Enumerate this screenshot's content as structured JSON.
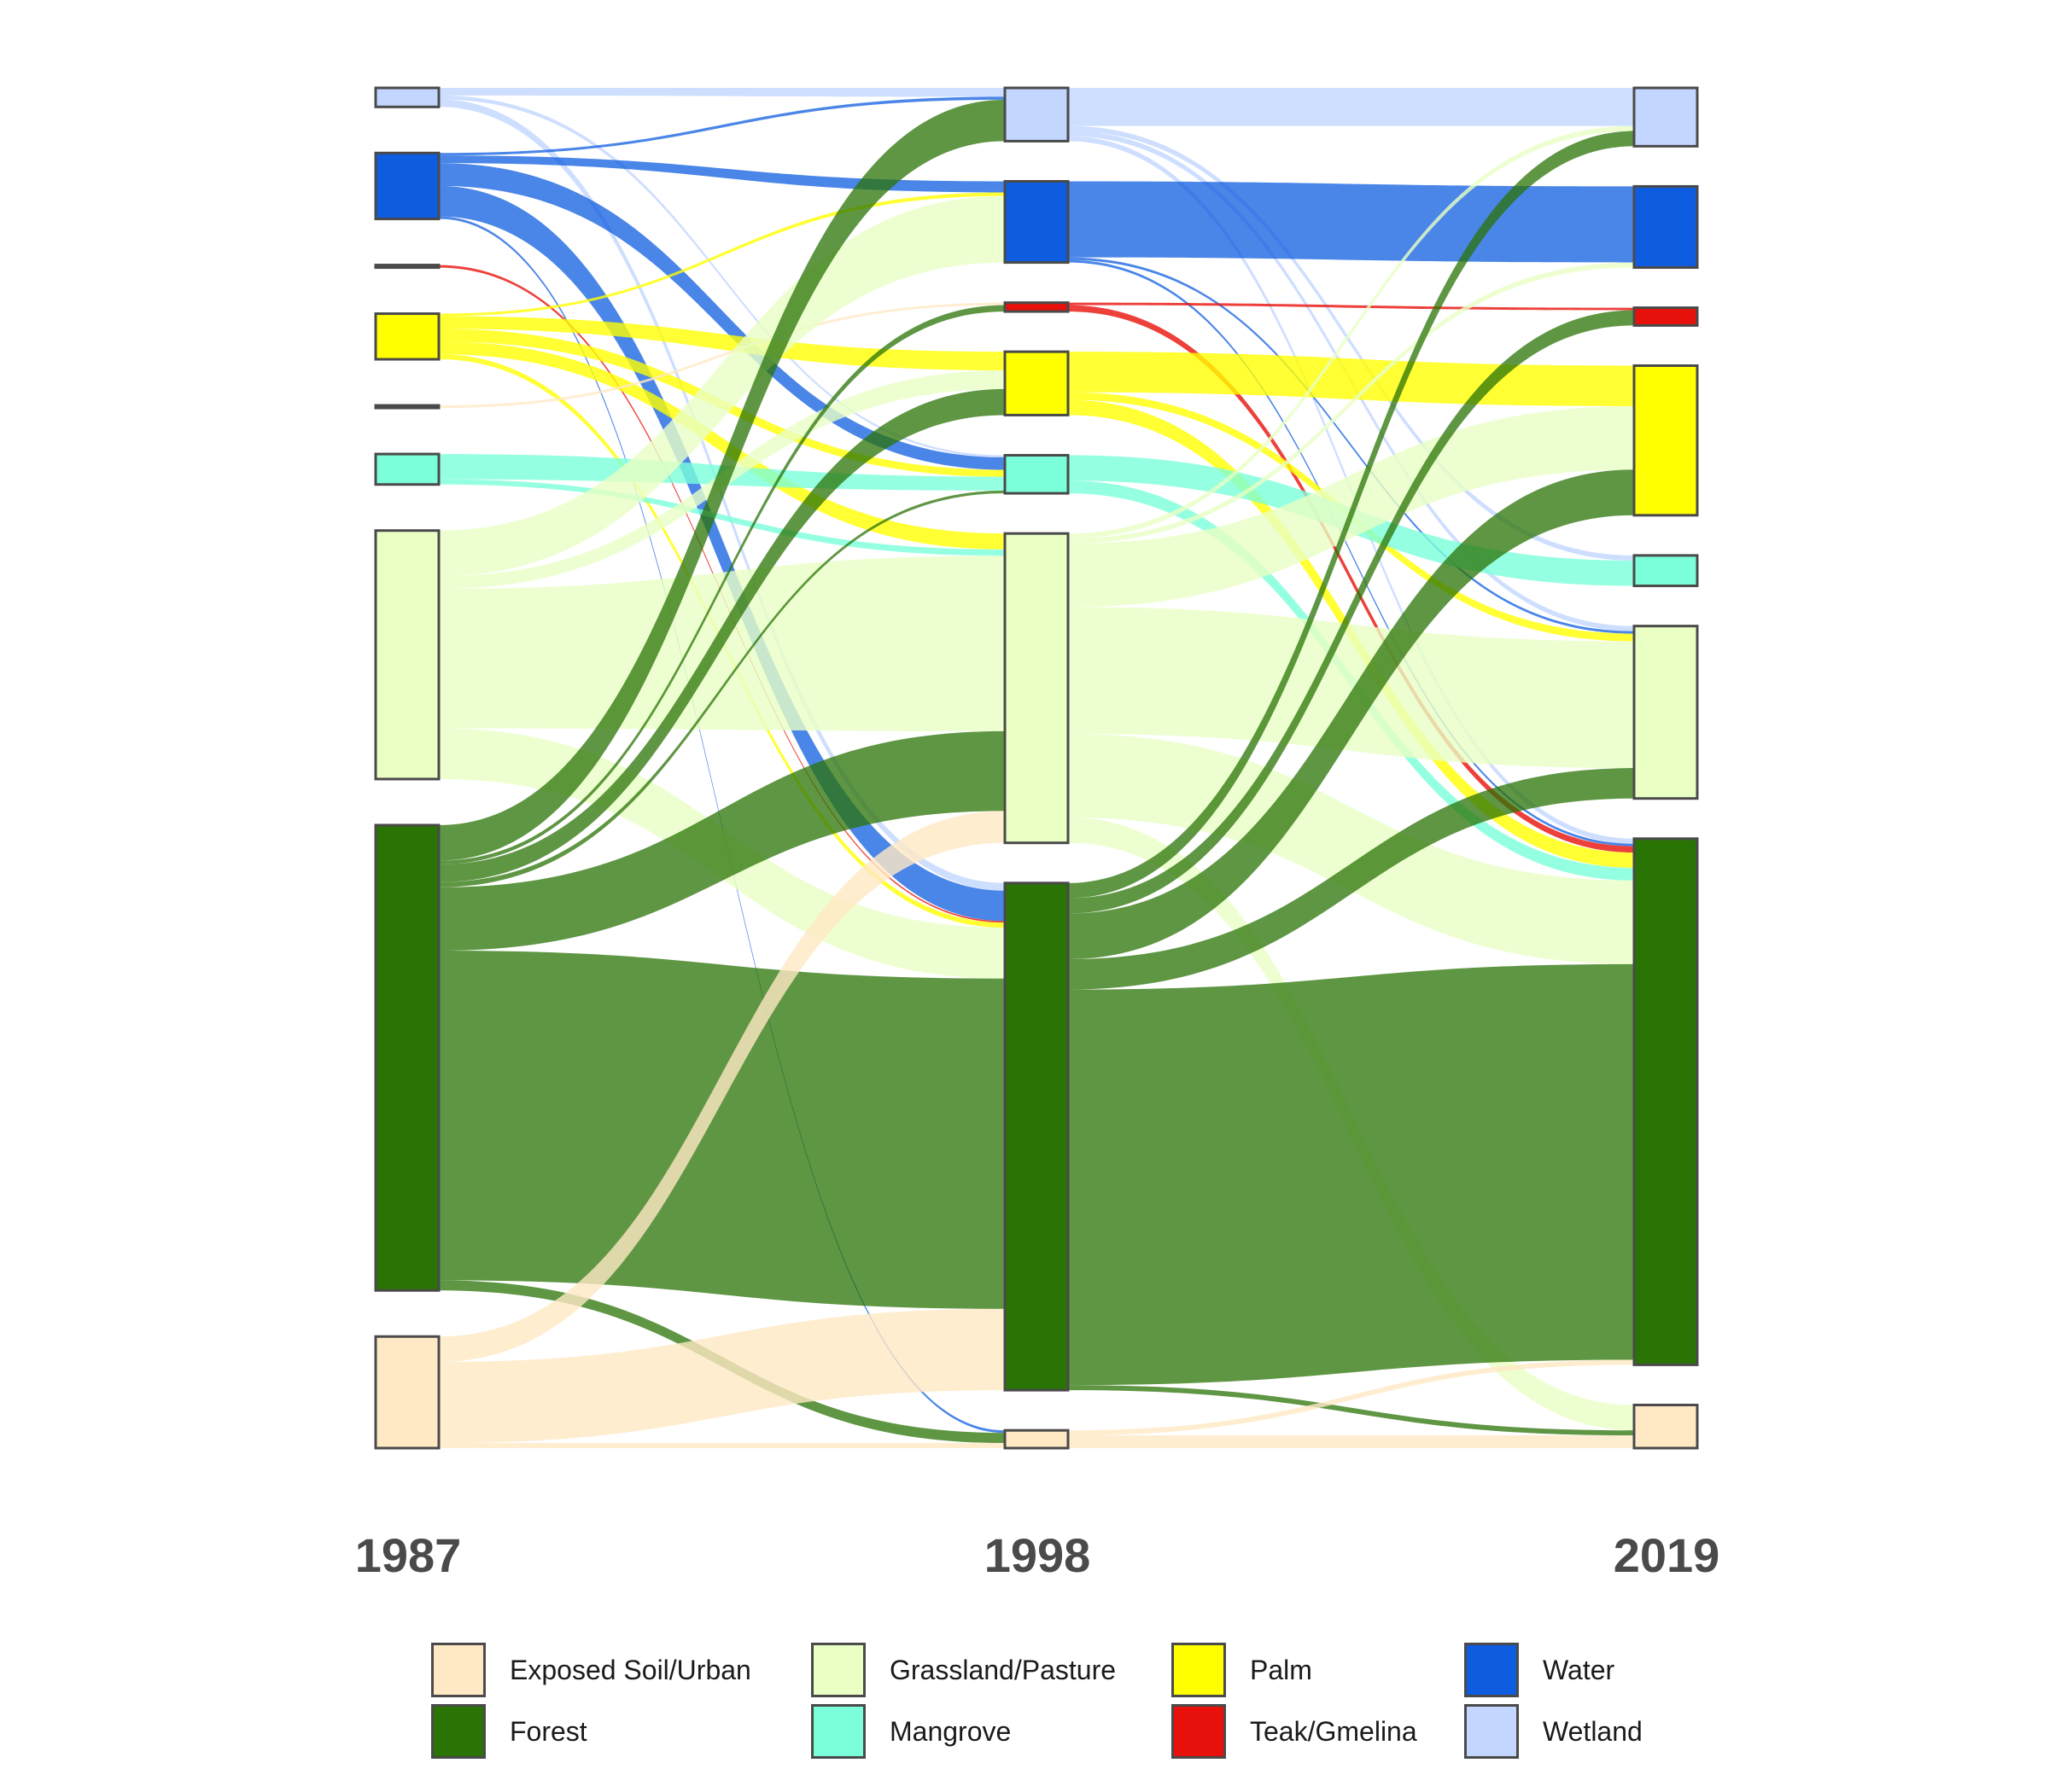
{
  "chart_data": {
    "type": "sankey",
    "title": "",
    "stages": [
      "1987",
      "1998",
      "2019"
    ],
    "categories": [
      "Wetland",
      "Water",
      "Teak/Gmelina",
      "Palm",
      "Exposed Soil/Urban 2",
      "Mangrove",
      "Grassland/Pasture",
      "Forest",
      "Exposed Soil/Urban"
    ],
    "colors": {
      "Exposed Soil/Urban": "#FFE9C4",
      "Forest": "#2A7305",
      "Grassland/Pasture": "#E9FFC4",
      "Mangrove": "#7BFFDA",
      "Palm": "#FFFF00",
      "Teak/Gmelina": "#E8100A",
      "Water": "#0E5CE0",
      "Wetland": "#C2D6FF"
    },
    "flows_1987_1998": [
      {
        "from": "Wetland",
        "to": "Wetland",
        "value": 0.3
      },
      {
        "from": "Wetland",
        "to": "Mangrove",
        "value": 0.15
      },
      {
        "from": "Wetland",
        "to": "Forest",
        "value": 0.3
      },
      {
        "from": "Water",
        "to": "Wetland",
        "value": 0.1
      },
      {
        "from": "Water",
        "to": "Water",
        "value": 0.3
      },
      {
        "from": "Water",
        "to": "Mangrove",
        "value": 0.9
      },
      {
        "from": "Water",
        "to": "Forest",
        "value": 1.2
      },
      {
        "from": "Water",
        "to": "Exposed Soil/Urban",
        "value": 0.1
      },
      {
        "from": "Teak/Gmelina",
        "to": "Forest",
        "value": 0.06
      },
      {
        "from": "Palm",
        "to": "Water",
        "value": 0.1
      },
      {
        "from": "Palm",
        "to": "Palm",
        "value": 0.5
      },
      {
        "from": "Palm",
        "to": "Mangrove",
        "value": 0.5
      },
      {
        "from": "Palm",
        "to": "Grassland/Pasture",
        "value": 0.5
      },
      {
        "from": "Palm",
        "to": "Forest",
        "value": 0.2
      },
      {
        "from": "Exposed Soil/Urban 2",
        "to": "Teak/Gmelina",
        "value": 0.06
      },
      {
        "from": "Mangrove",
        "to": "Mangrove",
        "value": 1.0
      },
      {
        "from": "Mangrove",
        "to": "Grassland/Pasture",
        "value": 0.2
      },
      {
        "from": "Grassland/Pasture",
        "to": "Water",
        "value": 1.8
      },
      {
        "from": "Grassland/Pasture",
        "to": "Palm",
        "value": 0.5
      },
      {
        "from": "Grassland/Pasture",
        "to": "Grassland/Pasture",
        "value": 5.5
      },
      {
        "from": "Grassland/Pasture",
        "to": "Forest",
        "value": 2.0
      },
      {
        "from": "Forest",
        "to": "Wetland",
        "value": 1.4
      },
      {
        "from": "Forest",
        "to": "Teak/Gmelina",
        "value": 0.15
      },
      {
        "from": "Forest",
        "to": "Palm",
        "value": 0.7
      },
      {
        "from": "Forest",
        "to": "Mangrove",
        "value": 0.2
      },
      {
        "from": "Forest",
        "to": "Grassland/Pasture",
        "value": 2.5
      },
      {
        "from": "Forest",
        "to": "Forest",
        "value": 13.0
      },
      {
        "from": "Forest",
        "to": "Exposed Soil/Urban",
        "value": 0.4
      },
      {
        "from": "Exposed Soil/Urban",
        "to": "Grassland/Pasture",
        "value": 1.0
      },
      {
        "from": "Exposed Soil/Urban",
        "to": "Forest",
        "value": 3.2
      },
      {
        "from": "Exposed Soil/Urban",
        "to": "Exposed Soil/Urban",
        "value": 0.2
      }
    ],
    "flows_1998_2019": [
      {
        "from": "Wetland",
        "to": "Wetland",
        "value": 1.5
      },
      {
        "from": "Wetland",
        "to": "Mangrove",
        "value": 0.2
      },
      {
        "from": "Wetland",
        "to": "Grassland/Pasture",
        "value": 0.2
      },
      {
        "from": "Wetland",
        "to": "Forest",
        "value": 0.2
      },
      {
        "from": "Water",
        "to": "Water",
        "value": 3.0
      },
      {
        "from": "Water",
        "to": "Grassland/Pasture",
        "value": 0.1
      },
      {
        "from": "Water",
        "to": "Forest",
        "value": 0.1
      },
      {
        "from": "Teak/Gmelina",
        "to": "Teak/Gmelina",
        "value": 0.1
      },
      {
        "from": "Teak/Gmelina",
        "to": "Forest",
        "value": 0.25
      },
      {
        "from": "Palm",
        "to": "Palm",
        "value": 1.6
      },
      {
        "from": "Palm",
        "to": "Grassland/Pasture",
        "value": 0.3
      },
      {
        "from": "Palm",
        "to": "Forest",
        "value": 0.6
      },
      {
        "from": "Mangrove",
        "to": "Mangrove",
        "value": 1.0
      },
      {
        "from": "Mangrove",
        "to": "Forest",
        "value": 0.5
      },
      {
        "from": "Grassland/Pasture",
        "to": "Wetland",
        "value": 0.2
      },
      {
        "from": "Grassland/Pasture",
        "to": "Water",
        "value": 0.2
      },
      {
        "from": "Grassland/Pasture",
        "to": "Palm",
        "value": 2.5
      },
      {
        "from": "Grassland/Pasture",
        "to": "Grassland/Pasture",
        "value": 5.0
      },
      {
        "from": "Grassland/Pasture",
        "to": "Forest",
        "value": 3.3
      },
      {
        "from": "Grassland/Pasture",
        "to": "Exposed Soil/Urban",
        "value": 1.0
      },
      {
        "from": "Forest",
        "to": "Wetland",
        "value": 0.6
      },
      {
        "from": "Forest",
        "to": "Teak/Gmelina",
        "value": 0.6
      },
      {
        "from": "Forest",
        "to": "Palm",
        "value": 1.8
      },
      {
        "from": "Forest",
        "to": "Grassland/Pasture",
        "value": 1.2
      },
      {
        "from": "Forest",
        "to": "Forest",
        "value": 15.6
      },
      {
        "from": "Forest",
        "to": "Exposed Soil/Urban",
        "value": 0.2
      },
      {
        "from": "Exposed Soil/Urban",
        "to": "Exposed Soil/Urban",
        "value": 0.5
      },
      {
        "from": "Exposed Soil/Urban",
        "to": "Forest",
        "value": 0.2
      }
    ]
  },
  "legend": {
    "items": [
      {
        "label": "Exposed Soil/Urban",
        "color": "#FFE9C4"
      },
      {
        "label": "Grassland/Pasture",
        "color": "#E9FFC4"
      },
      {
        "label": "Palm",
        "color": "#FFFF00"
      },
      {
        "label": "Water",
        "color": "#0E5CE0"
      },
      {
        "label": "Forest",
        "color": "#2A7305"
      },
      {
        "label": "Mangrove",
        "color": "#7BFFDA"
      },
      {
        "label": "Teak/Gmelina",
        "color": "#E8100A"
      },
      {
        "label": "Wetland",
        "color": "#C2D6FF"
      }
    ]
  }
}
